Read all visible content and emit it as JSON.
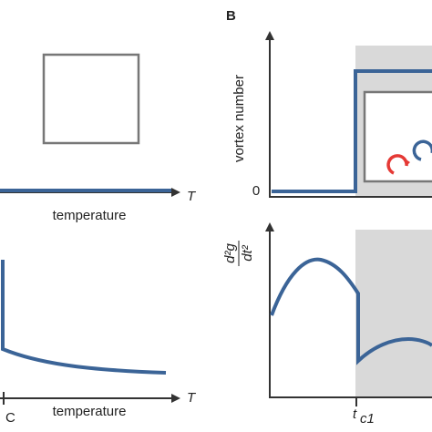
{
  "panel_a": {
    "top_x_label": "temperature",
    "top_x_symbol": "T",
    "bottom_x_label": "temperature",
    "bottom_x_symbol": "T",
    "bottom_tick_subscript": "C"
  },
  "panel_b": {
    "label": "B",
    "top_y_label": "vortex number",
    "top_y_tick": "0",
    "bottom_y_label_numerator": "d²g",
    "bottom_y_label_denominator": "dt²",
    "bottom_x_tick": "t",
    "bottom_x_tick_subscript": "c1"
  }
}
